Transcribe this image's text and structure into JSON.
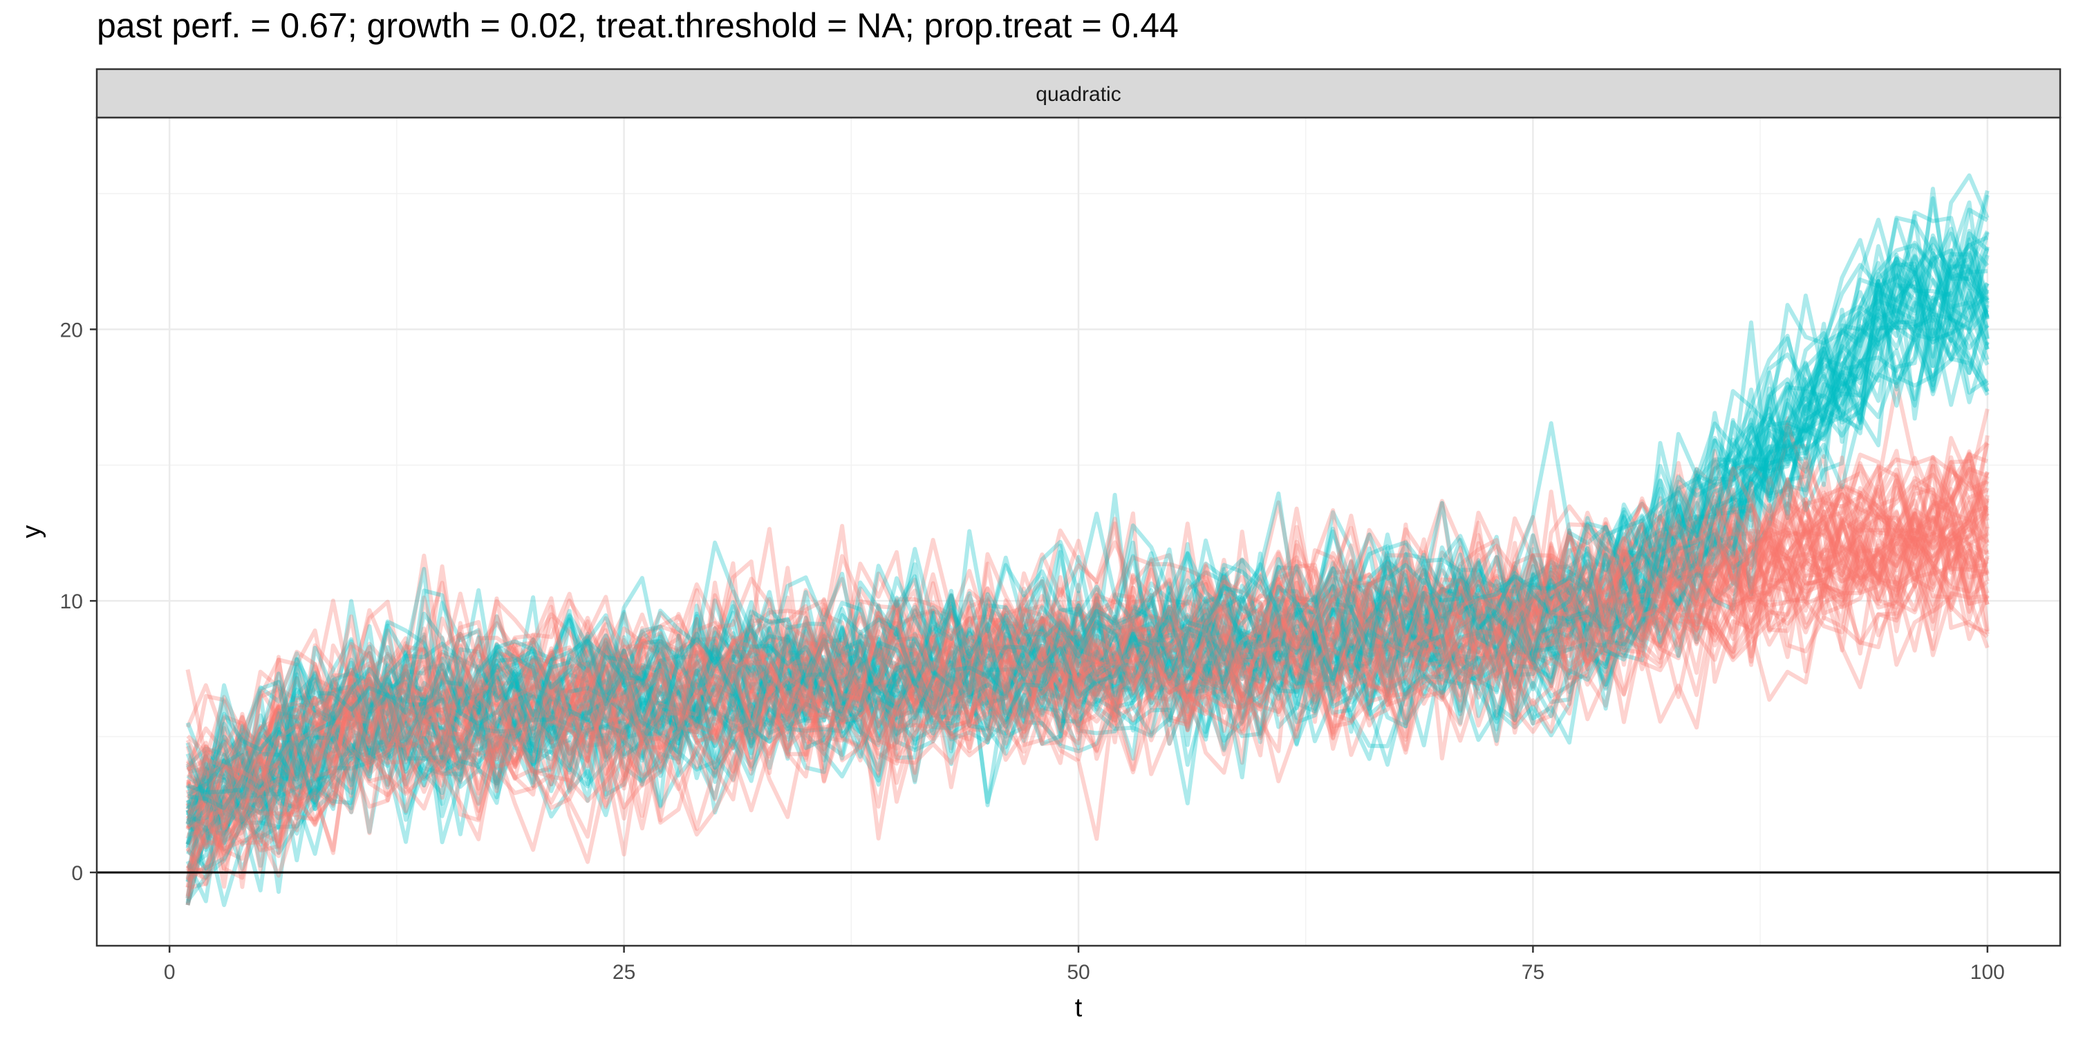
{
  "chart_data": {
    "type": "line",
    "title": "past perf. = 0.67; growth = 0.02,  treat.threshold = NA;  prop.treat = 0.44",
    "facet_label": "quadratic",
    "xlabel": "t",
    "ylabel": "y",
    "xlim": [
      -4,
      104
    ],
    "ylim": [
      -2.7,
      27.8
    ],
    "x_ticks": [
      0,
      25,
      50,
      75,
      100
    ],
    "y_ticks": [
      0,
      10,
      20
    ],
    "hline_y": 0,
    "grid": true,
    "legend": "none",
    "series_count": {
      "control": 56,
      "treated": 44
    },
    "colors": {
      "control": "#F8766D",
      "treated": "#00BFC4"
    },
    "series_model": {
      "x_range": [
        1,
        100
      ],
      "note_values_read_from_plot": true,
      "control_mean_at": {
        "t1": 2,
        "t10": 5.5,
        "t25": 6.7,
        "t50": 8,
        "t75": 9.2,
        "t90": 10.8,
        "t100": 11.2
      },
      "treated_mean_at": {
        "t1": 2,
        "t10": 5.5,
        "t25": 6.7,
        "t50": 8,
        "t75": 9.4,
        "t82": 11,
        "t90": 17.5,
        "t100": 19.5
      }
    }
  }
}
